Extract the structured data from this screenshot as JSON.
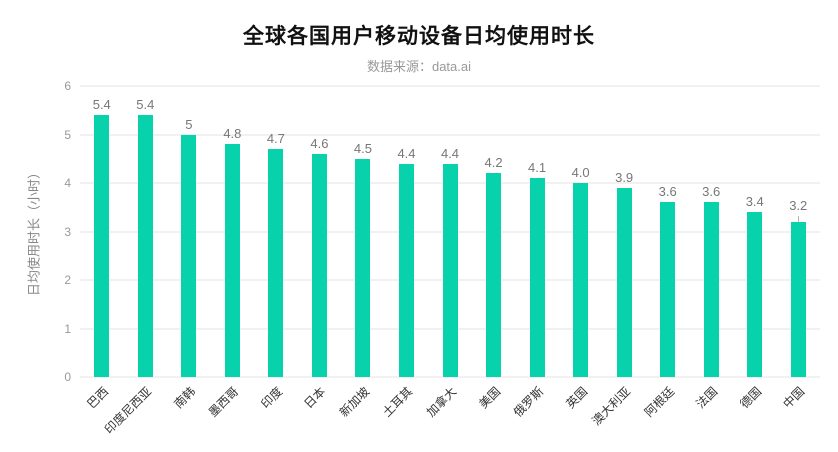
{
  "colors": {
    "bar": "#08d2ab",
    "grid": "#e3e3e3",
    "title": "#111111",
    "subtitle": "#999999",
    "axis_text": "#999999",
    "value_label": "#777777",
    "x_label": "#333333",
    "background": "#ffffff"
  },
  "chart_data": {
    "type": "bar",
    "title": "全球各国用户移动设备日均使用时长",
    "subtitle": "数据来源：data.ai",
    "xlabel": "",
    "ylabel": "日均使用时长（小时）",
    "ylim": [
      0,
      6
    ],
    "yticks": [
      0,
      1,
      2,
      3,
      4,
      5,
      6
    ],
    "grid": true,
    "legend_position": "none",
    "bar_color": "#08d2ab",
    "x_label_rotation": -45,
    "categories": [
      "巴西",
      "印度尼西亚",
      "南韩",
      "墨西哥",
      "印度",
      "日本",
      "新加坡",
      "土耳其",
      "加拿大",
      "美国",
      "俄罗斯",
      "英国",
      "澳大利亚",
      "阿根廷",
      "法国",
      "德国",
      "中国"
    ],
    "values": [
      5.4,
      5.4,
      5,
      4.8,
      4.7,
      4.6,
      4.5,
      4.4,
      4.4,
      4.2,
      4.1,
      4.0,
      3.9,
      3.6,
      3.6,
      3.4,
      3.2
    ],
    "value_labels": [
      "5.4",
      "5.4",
      "5",
      "4.8",
      "4.7",
      "4.6",
      "4.5",
      "4.4",
      "4.4",
      "4.2",
      "4.1",
      "4.0",
      "3.9",
      "3.6",
      "3.6",
      "3.4",
      "3.2"
    ],
    "leader_line_index": 16
  }
}
